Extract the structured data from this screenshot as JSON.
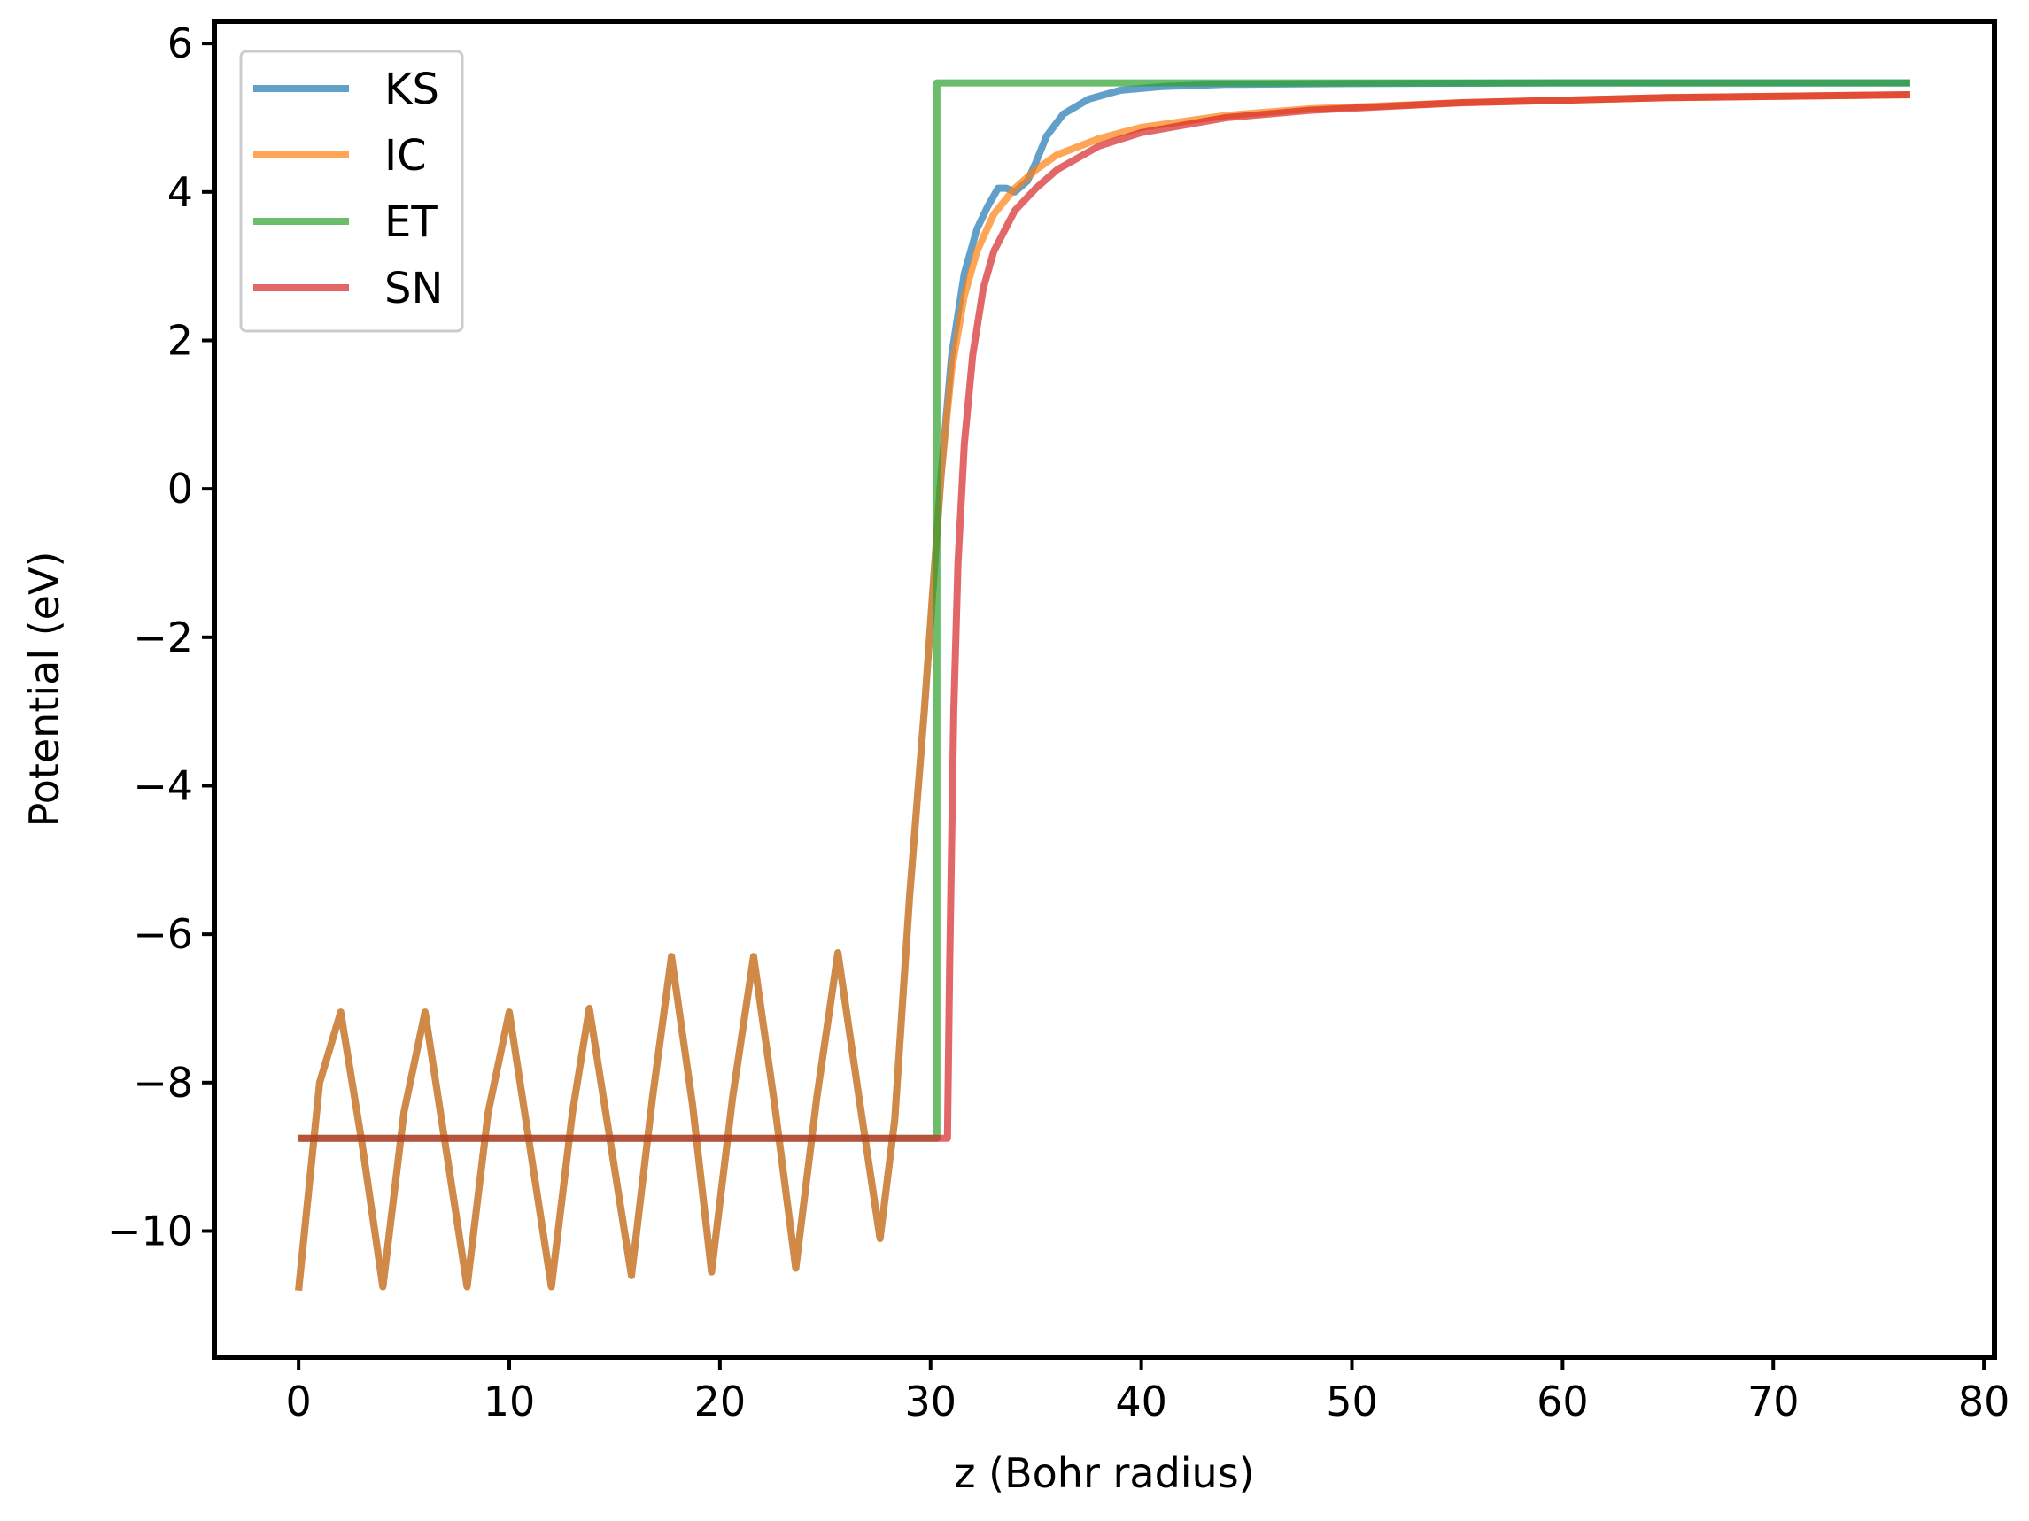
{
  "chart_data": {
    "type": "line",
    "xlabel": "z (Bohr radius)",
    "ylabel": "Potential (eV)",
    "xlim": [
      -4,
      80.5
    ],
    "ylim": [
      -11.7,
      6.3
    ],
    "xticks": [
      0,
      10,
      20,
      30,
      40,
      50,
      60,
      70,
      80
    ],
    "yticks": [
      -10,
      -8,
      -6,
      -4,
      -2,
      0,
      2,
      4,
      6
    ],
    "xtick_labels": [
      "0",
      "10",
      "20",
      "30",
      "40",
      "50",
      "60",
      "70",
      "80"
    ],
    "ytick_labels": [
      "−10",
      "−8",
      "−6",
      "−4",
      "−2",
      "0",
      "2",
      "4",
      "6"
    ],
    "grid": false,
    "legend_position": "top-left",
    "series": [
      {
        "name": "KS",
        "color": "#1f77b4",
        "points": [
          [
            0,
            -10.8
          ],
          [
            1.0,
            -8.0
          ],
          [
            2.0,
            -7.05
          ],
          [
            3.0,
            -8.8
          ],
          [
            4.0,
            -10.75
          ],
          [
            5.0,
            -8.4
          ],
          [
            6.0,
            -7.05
          ],
          [
            7.0,
            -8.9
          ],
          [
            8.0,
            -10.75
          ],
          [
            9.0,
            -8.4
          ],
          [
            10.0,
            -7.05
          ],
          [
            11.0,
            -8.9
          ],
          [
            12.0,
            -10.75
          ],
          [
            13.0,
            -8.4
          ],
          [
            13.8,
            -7.0
          ],
          [
            14.8,
            -8.8
          ],
          [
            15.8,
            -10.6
          ],
          [
            16.8,
            -8.2
          ],
          [
            17.7,
            -6.3
          ],
          [
            18.7,
            -8.3
          ],
          [
            19.6,
            -10.55
          ],
          [
            20.6,
            -8.2
          ],
          [
            21.6,
            -6.3
          ],
          [
            22.6,
            -8.3
          ],
          [
            23.6,
            -10.5
          ],
          [
            24.6,
            -8.2
          ],
          [
            25.6,
            -6.25
          ],
          [
            26.6,
            -8.2
          ],
          [
            27.6,
            -10.1
          ],
          [
            28.3,
            -8.5
          ],
          [
            29.0,
            -5.5
          ],
          [
            29.7,
            -3.0
          ],
          [
            30.5,
            0.2
          ],
          [
            31.0,
            1.8
          ],
          [
            31.6,
            2.9
          ],
          [
            32.2,
            3.5
          ],
          [
            32.7,
            3.8
          ],
          [
            33.2,
            4.05
          ],
          [
            33.6,
            4.05
          ],
          [
            34.0,
            4.0
          ],
          [
            34.6,
            4.15
          ],
          [
            35.0,
            4.4
          ],
          [
            35.5,
            4.75
          ],
          [
            36.3,
            5.05
          ],
          [
            37.5,
            5.25
          ],
          [
            39.0,
            5.37
          ],
          [
            41.0,
            5.42
          ],
          [
            44.0,
            5.45
          ],
          [
            50.0,
            5.46
          ],
          [
            60.0,
            5.47
          ],
          [
            76.5,
            5.47
          ]
        ]
      },
      {
        "name": "IC",
        "color": "#ff7f0e",
        "points": [
          [
            0,
            -10.8
          ],
          [
            1.0,
            -8.0
          ],
          [
            2.0,
            -7.05
          ],
          [
            3.0,
            -8.8
          ],
          [
            4.0,
            -10.75
          ],
          [
            5.0,
            -8.4
          ],
          [
            6.0,
            -7.05
          ],
          [
            7.0,
            -8.9
          ],
          [
            8.0,
            -10.75
          ],
          [
            9.0,
            -8.4
          ],
          [
            10.0,
            -7.05
          ],
          [
            11.0,
            -8.9
          ],
          [
            12.0,
            -10.75
          ],
          [
            13.0,
            -8.4
          ],
          [
            13.8,
            -7.0
          ],
          [
            14.8,
            -8.8
          ],
          [
            15.8,
            -10.6
          ],
          [
            16.8,
            -8.2
          ],
          [
            17.7,
            -6.3
          ],
          [
            18.7,
            -8.3
          ],
          [
            19.6,
            -10.55
          ],
          [
            20.6,
            -8.2
          ],
          [
            21.6,
            -6.3
          ],
          [
            22.6,
            -8.3
          ],
          [
            23.6,
            -10.5
          ],
          [
            24.6,
            -8.2
          ],
          [
            25.6,
            -6.25
          ],
          [
            26.6,
            -8.2
          ],
          [
            27.6,
            -10.1
          ],
          [
            28.3,
            -8.5
          ],
          [
            29.0,
            -5.5
          ],
          [
            29.7,
            -3.0
          ],
          [
            30.5,
            0.2
          ],
          [
            31.0,
            1.6
          ],
          [
            31.6,
            2.6
          ],
          [
            32.2,
            3.2
          ],
          [
            33.0,
            3.7
          ],
          [
            34.0,
            4.05
          ],
          [
            35.0,
            4.3
          ],
          [
            36.0,
            4.5
          ],
          [
            38.0,
            4.72
          ],
          [
            40.0,
            4.87
          ],
          [
            44.0,
            5.03
          ],
          [
            48.0,
            5.12
          ],
          [
            55.0,
            5.2
          ],
          [
            65.0,
            5.27
          ],
          [
            76.5,
            5.31
          ]
        ]
      },
      {
        "name": "ET",
        "color": "#2ca02c",
        "points": [
          [
            0,
            -8.75
          ],
          [
            30.3,
            -8.75
          ],
          [
            30.3,
            5.47
          ],
          [
            76.5,
            5.47
          ]
        ]
      },
      {
        "name": "SN",
        "color": "#d62728",
        "points": [
          [
            0,
            -8.75
          ],
          [
            30.8,
            -8.75
          ],
          [
            30.9,
            -6.5
          ],
          [
            31.1,
            -3.0
          ],
          [
            31.3,
            -1.0
          ],
          [
            31.6,
            0.6
          ],
          [
            32.0,
            1.8
          ],
          [
            32.5,
            2.7
          ],
          [
            33.0,
            3.2
          ],
          [
            34.0,
            3.75
          ],
          [
            35.0,
            4.05
          ],
          [
            36.0,
            4.3
          ],
          [
            38.0,
            4.62
          ],
          [
            40.0,
            4.8
          ],
          [
            44.0,
            5.0
          ],
          [
            48.0,
            5.1
          ],
          [
            55.0,
            5.2
          ],
          [
            65.0,
            5.27
          ],
          [
            76.5,
            5.31
          ]
        ]
      }
    ]
  }
}
